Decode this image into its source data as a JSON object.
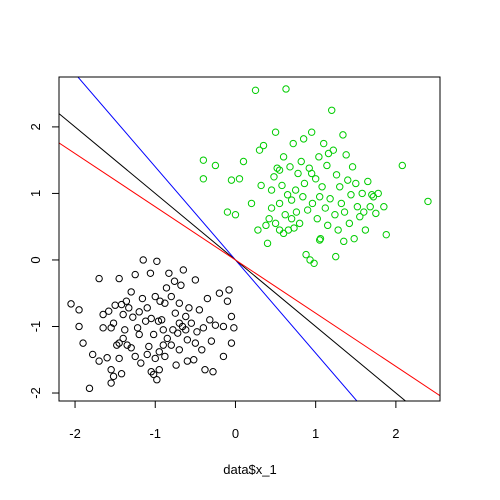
{
  "chart_data": {
    "type": "scatter",
    "title": "",
    "xlabel": "data$x_1",
    "ylabel": "",
    "xlim": [
      -2.2,
      2.55
    ],
    "ylim": [
      -2.12,
      2.75
    ],
    "x_ticks": [
      -2,
      -1,
      0,
      1,
      2
    ],
    "x_tick_labels": [
      "-2",
      "-1",
      "0",
      "1",
      "2"
    ],
    "y_ticks": [
      -2,
      -1,
      0,
      1,
      2
    ],
    "y_tick_labels": [
      "-2",
      "-1",
      "0",
      "1",
      "2"
    ],
    "grid": false,
    "legend": "none",
    "series": [
      {
        "color": "#000000",
        "marker": "open-circle",
        "points": [
          [
            -2.05,
            -0.66
          ],
          [
            -1.95,
            -0.75
          ],
          [
            -1.95,
            -1.0
          ],
          [
            -1.9,
            -1.25
          ],
          [
            -1.82,
            -1.93
          ],
          [
            -1.78,
            -1.42
          ],
          [
            -1.7,
            -0.28
          ],
          [
            -1.7,
            -1.52
          ],
          [
            -1.65,
            -0.82
          ],
          [
            -1.65,
            -1.02
          ],
          [
            -1.6,
            -1.47
          ],
          [
            -1.58,
            -0.77
          ],
          [
            -1.55,
            -1.85
          ],
          [
            -1.55,
            -1.65
          ],
          [
            -1.52,
            -0.95
          ],
          [
            -1.52,
            -1.75
          ],
          [
            -1.5,
            -0.68
          ],
          [
            -1.48,
            -1.28
          ],
          [
            -1.45,
            -0.28
          ],
          [
            -1.45,
            -1.25
          ],
          [
            -1.42,
            -0.67
          ],
          [
            -1.42,
            -1.71
          ],
          [
            -1.4,
            -0.82
          ],
          [
            -1.4,
            -1.18
          ],
          [
            -1.38,
            -1.05
          ],
          [
            -1.36,
            -0.62
          ],
          [
            -1.35,
            -1.28
          ],
          [
            -1.33,
            -0.72
          ],
          [
            -1.3,
            -1.32
          ],
          [
            -1.28,
            -0.86
          ],
          [
            -1.25,
            -0.22
          ],
          [
            -1.25,
            -1.45
          ],
          [
            -1.22,
            -1.02
          ],
          [
            -1.2,
            -1.12
          ],
          [
            -1.18,
            -1.55
          ],
          [
            -1.16,
            -0.58
          ],
          [
            -1.15,
            0.0
          ],
          [
            -1.12,
            -0.92
          ],
          [
            -1.1,
            -1.42
          ],
          [
            -1.1,
            -0.72
          ],
          [
            -1.08,
            -1.3
          ],
          [
            -1.06,
            -0.2
          ],
          [
            -1.05,
            -0.88
          ],
          [
            -1.05,
            -1.68
          ],
          [
            -1.02,
            -1.12
          ],
          [
            -1.02,
            -1.72
          ],
          [
            -1.0,
            -0.55
          ],
          [
            -1.0,
            -1.48
          ],
          [
            -0.98,
            -0.02
          ],
          [
            -0.98,
            -1.8
          ],
          [
            -0.96,
            -0.92
          ],
          [
            -0.95,
            -1.38
          ],
          [
            -0.94,
            -0.62
          ],
          [
            -0.92,
            -0.9
          ],
          [
            -0.9,
            -1.05
          ],
          [
            -0.9,
            -1.28
          ],
          [
            -0.88,
            -1.45
          ],
          [
            -0.86,
            -0.42
          ],
          [
            -0.85,
            -1.18
          ],
          [
            -0.83,
            -0.2
          ],
          [
            -0.8,
            -0.55
          ],
          [
            -0.8,
            -1.28
          ],
          [
            -0.78,
            -1.05
          ],
          [
            -0.76,
            -0.32
          ],
          [
            -0.75,
            -0.8
          ],
          [
            -0.74,
            -1.58
          ],
          [
            -0.72,
            -1.1
          ],
          [
            -0.7,
            -0.65
          ],
          [
            -0.7,
            -1.35
          ],
          [
            -0.68,
            -0.38
          ],
          [
            -0.66,
            -1.0
          ],
          [
            -0.65,
            -0.15
          ],
          [
            -0.62,
            -0.85
          ],
          [
            -0.6,
            -1.52
          ],
          [
            -0.6,
            -1.2
          ],
          [
            -0.58,
            -0.72
          ],
          [
            -0.55,
            -0.95
          ],
          [
            -0.52,
            -1.5
          ],
          [
            -0.5,
            -0.3
          ],
          [
            -0.48,
            -1.08
          ],
          [
            -0.45,
            -0.75
          ],
          [
            -0.42,
            -1.35
          ],
          [
            -0.4,
            -1.02
          ],
          [
            -0.38,
            -1.65
          ],
          [
            -0.35,
            -0.58
          ],
          [
            -0.32,
            -0.9
          ],
          [
            -0.3,
            -1.22
          ],
          [
            -0.28,
            -1.68
          ],
          [
            -0.25,
            -0.98
          ],
          [
            -0.2,
            -0.5
          ],
          [
            -0.15,
            -1.0
          ],
          [
            -0.1,
            -0.62
          ],
          [
            -0.08,
            -0.45
          ],
          [
            -0.05,
            -0.85
          ],
          [
            -0.05,
            -1.25
          ],
          [
            -0.02,
            -1.02
          ],
          [
            -0.15,
            -1.45
          ],
          [
            -1.3,
            -0.48
          ],
          [
            -0.88,
            -0.65
          ],
          [
            -1.55,
            -1.02
          ],
          [
            -0.5,
            -1.25
          ],
          [
            -1.2,
            -0.78
          ],
          [
            -0.62,
            -1.05
          ],
          [
            -1.45,
            -1.48
          ],
          [
            -0.95,
            -1.65
          ],
          [
            -0.7,
            -0.95
          ]
        ]
      },
      {
        "color": "#00cc00",
        "marker": "open-circle",
        "points": [
          [
            -0.4,
            1.5
          ],
          [
            -0.4,
            1.22
          ],
          [
            -0.25,
            1.42
          ],
          [
            -0.1,
            0.72
          ],
          [
            -0.05,
            1.2
          ],
          [
            0.0,
            0.68
          ],
          [
            0.05,
            1.22
          ],
          [
            0.1,
            1.48
          ],
          [
            0.2,
            0.85
          ],
          [
            0.25,
            2.55
          ],
          [
            0.28,
            0.45
          ],
          [
            0.3,
            1.65
          ],
          [
            0.32,
            1.12
          ],
          [
            0.35,
            1.72
          ],
          [
            0.38,
            0.52
          ],
          [
            0.4,
            0.25
          ],
          [
            0.42,
            0.62
          ],
          [
            0.45,
            1.05
          ],
          [
            0.45,
            0.78
          ],
          [
            0.48,
            1.25
          ],
          [
            0.5,
            1.92
          ],
          [
            0.5,
            0.55
          ],
          [
            0.52,
            1.38
          ],
          [
            0.55,
            0.45
          ],
          [
            0.55,
            0.85
          ],
          [
            0.58,
            1.12
          ],
          [
            0.6,
            0.4
          ],
          [
            0.6,
            1.55
          ],
          [
            0.62,
            0.68
          ],
          [
            0.63,
            2.57
          ],
          [
            0.65,
            0.98
          ],
          [
            0.66,
            0.45
          ],
          [
            0.68,
            1.4
          ],
          [
            0.7,
            0.9
          ],
          [
            0.72,
            1.75
          ],
          [
            0.73,
            0.48
          ],
          [
            0.75,
            1.05
          ],
          [
            0.76,
            0.72
          ],
          [
            0.78,
            1.3
          ],
          [
            0.8,
            0.55
          ],
          [
            0.82,
            1.48
          ],
          [
            0.84,
            0.95
          ],
          [
            0.85,
            1.82
          ],
          [
            0.86,
            1.15
          ],
          [
            0.88,
            0.08
          ],
          [
            0.9,
            0.75
          ],
          [
            0.92,
            1.38
          ],
          [
            0.93,
            0.0
          ],
          [
            0.95,
            1.92
          ],
          [
            0.96,
            0.85
          ],
          [
            0.98,
            -0.05
          ],
          [
            1.0,
            1.22
          ],
          [
            1.02,
            0.62
          ],
          [
            1.04,
            1.55
          ],
          [
            1.05,
            0.95
          ],
          [
            1.06,
            0.32
          ],
          [
            1.08,
            1.1
          ],
          [
            1.1,
            1.75
          ],
          [
            1.12,
            0.78
          ],
          [
            1.14,
            1.42
          ],
          [
            1.15,
            0.52
          ],
          [
            1.16,
            1.6
          ],
          [
            1.18,
            0.92
          ],
          [
            1.2,
            2.25
          ],
          [
            1.22,
            1.65
          ],
          [
            1.24,
            0.68
          ],
          [
            1.26,
            1.28
          ],
          [
            1.28,
            0.45
          ],
          [
            1.3,
            1.1
          ],
          [
            1.32,
            0.85
          ],
          [
            1.34,
            1.88
          ],
          [
            1.35,
            0.28
          ],
          [
            1.36,
            0.72
          ],
          [
            1.38,
            1.58
          ],
          [
            1.4,
            1.2
          ],
          [
            1.42,
            0.55
          ],
          [
            1.44,
            0.98
          ],
          [
            1.46,
            1.4
          ],
          [
            1.48,
            0.32
          ],
          [
            1.5,
            1.15
          ],
          [
            1.52,
            0.8
          ],
          [
            1.55,
            0.65
          ],
          [
            1.58,
            1.0
          ],
          [
            1.6,
            0.72
          ],
          [
            1.62,
            0.45
          ],
          [
            1.65,
            1.18
          ],
          [
            1.68,
            0.8
          ],
          [
            1.72,
            0.95
          ],
          [
            1.75,
            0.7
          ],
          [
            1.78,
            1.0
          ],
          [
            1.85,
            0.8
          ],
          [
            1.88,
            0.38
          ],
          [
            2.08,
            1.42
          ],
          [
            2.4,
            0.88
          ],
          [
            1.05,
            0.3
          ],
          [
            0.55,
            1.35
          ],
          [
            0.7,
            0.62
          ],
          [
            1.25,
            0.05
          ],
          [
            1.7,
            0.98
          ],
          [
            0.95,
            1.3
          ]
        ]
      }
    ],
    "lines": [
      {
        "color": "#0000ff",
        "intercept": 0,
        "slope": -1.4
      },
      {
        "color": "#000000",
        "intercept": 0,
        "slope": -1.0
      },
      {
        "color": "#ff0000",
        "intercept": 0,
        "slope": -0.8
      }
    ]
  }
}
